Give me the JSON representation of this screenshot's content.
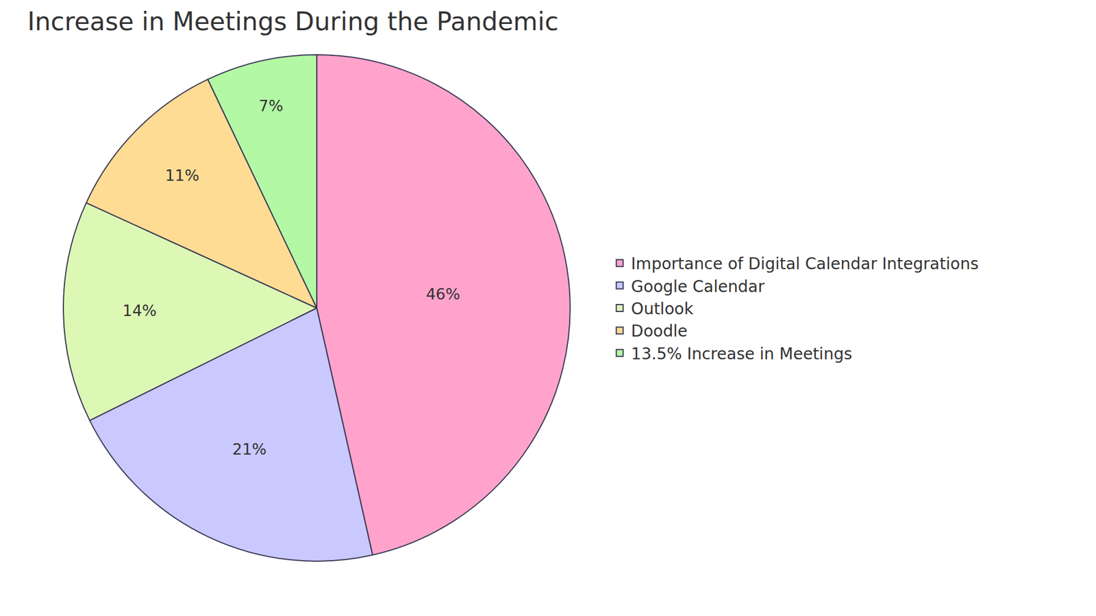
{
  "chart_data": {
    "type": "pie",
    "title": "Increase in Meetings During the Pandemic",
    "categories": [
      "Importance of Digital Calendar Integrations",
      "Google Calendar",
      "Outlook",
      "Doodle",
      "13.5% Increase in Meetings"
    ],
    "values": [
      46,
      21,
      14,
      11,
      7
    ],
    "value_labels": [
      "46%",
      "21%",
      "14%",
      "11%",
      "7%"
    ],
    "colors": [
      "#ffa3cd",
      "#c9c9ff",
      "#ddf8b5",
      "#fedc94",
      "#b3f8a5"
    ],
    "legend": "right",
    "data_labels": true
  }
}
